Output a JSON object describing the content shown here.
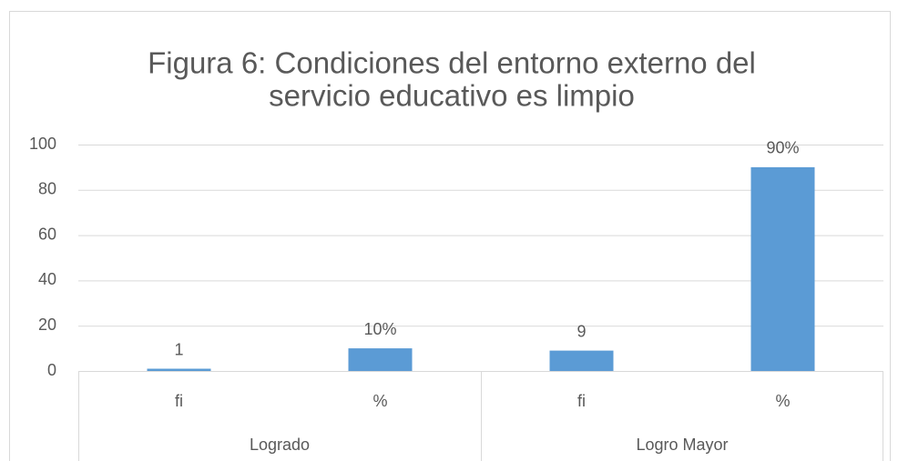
{
  "chart_data": {
    "type": "bar",
    "title_lines": [
      "Figura 6: Condiciones del entorno externo del",
      "servicio educativo es limpio"
    ],
    "categories": [
      "fi",
      "%",
      "fi",
      "%"
    ],
    "groups": [
      "Logrado",
      "Logro Mayor"
    ],
    "values": [
      1,
      10,
      9,
      90
    ],
    "value_labels": [
      "1",
      "10%",
      "9",
      "90%"
    ],
    "color": "#5b9bd5",
    "ylim": [
      0,
      100
    ],
    "yticks": [
      0,
      20,
      40,
      60,
      80,
      100
    ],
    "grid": true
  }
}
